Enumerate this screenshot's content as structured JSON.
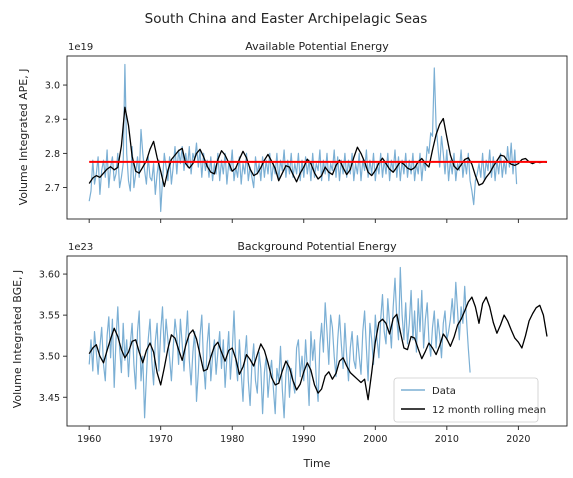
{
  "figure": {
    "suptitle": "South China and Easter Archipelagic Seas",
    "xlabel": "Time"
  },
  "colors": {
    "data": "#7bafd4",
    "rolling": "#000000",
    "mean": "#ff0000",
    "axis": "#222222"
  },
  "chart_data": [
    {
      "type": "line",
      "title": "Available Potential Energy",
      "ylabel": "Volume Integrated APE, J",
      "offset_label": "1e19",
      "xlim": [
        1956.9,
        2026.8
      ],
      "ylim": [
        2.608,
        3.085
      ],
      "yticks": [
        2.7,
        2.8,
        2.9,
        3.0
      ],
      "ytick_labels": [
        "2.7",
        "2.8",
        "2.9",
        "3.0"
      ],
      "xticks": [
        1960,
        1970,
        1980,
        1990,
        2000,
        2010,
        2020
      ],
      "xtick_labels": [],
      "mean_line": {
        "value": 2.775,
        "x": [
          1960,
          2024
        ]
      },
      "series": [
        {
          "name": "Data",
          "x_start": 1960.0,
          "x_step": 0.25,
          "values": [
            2.66,
            2.69,
            2.78,
            2.71,
            2.74,
            2.79,
            2.68,
            2.75,
            2.78,
            2.73,
            2.81,
            2.7,
            2.76,
            2.79,
            2.72,
            2.74,
            2.8,
            2.7,
            2.73,
            2.77,
            3.06,
            2.8,
            2.72,
            2.69,
            2.82,
            2.7,
            2.74,
            2.79,
            2.73,
            2.87,
            2.8,
            2.75,
            2.71,
            2.79,
            2.73,
            2.72,
            2.77,
            2.68,
            2.74,
            2.78,
            2.63,
            2.72,
            2.8,
            2.76,
            2.72,
            2.79,
            2.71,
            2.76,
            2.82,
            2.74,
            2.81,
            2.77,
            2.82,
            2.75,
            2.8,
            2.76,
            2.82,
            2.74,
            2.8,
            2.78,
            2.83,
            2.76,
            2.81,
            2.73,
            2.8,
            2.75,
            2.78,
            2.73,
            2.79,
            2.72,
            2.77,
            2.74,
            2.8,
            2.72,
            2.78,
            2.74,
            2.8,
            2.71,
            2.77,
            2.75,
            2.81,
            2.72,
            2.76,
            2.73,
            2.79,
            2.71,
            2.77,
            2.74,
            2.8,
            2.72,
            2.76,
            2.73,
            2.7,
            2.79,
            2.74,
            2.77,
            2.72,
            2.79,
            2.73,
            2.78,
            2.74,
            2.8,
            2.72,
            2.77,
            2.74,
            2.8,
            2.72,
            2.78,
            2.75,
            2.81,
            2.73,
            2.78,
            2.74,
            2.8,
            2.73,
            2.77,
            2.74,
            2.8,
            2.72,
            2.78,
            2.73,
            2.79,
            2.74,
            2.78,
            2.72,
            2.8,
            2.73,
            2.77,
            2.75,
            2.81,
            2.72,
            2.78,
            2.74,
            2.8,
            2.72,
            2.77,
            2.75,
            2.81,
            2.73,
            2.79,
            2.72,
            2.78,
            2.74,
            2.8,
            2.73,
            2.78,
            2.74,
            2.8,
            2.72,
            2.77,
            2.74,
            2.8,
            2.72,
            2.78,
            2.75,
            2.81,
            2.73,
            2.78,
            2.74,
            2.8,
            2.72,
            2.77,
            2.74,
            2.8,
            2.73,
            2.78,
            2.74,
            2.8,
            2.72,
            2.78,
            2.75,
            2.81,
            2.73,
            2.79,
            2.72,
            2.78,
            2.74,
            2.8,
            2.73,
            2.78,
            2.74,
            2.8,
            2.72,
            2.77,
            2.74,
            2.8,
            2.72,
            2.78,
            2.75,
            2.82,
            2.8,
            2.86,
            2.85,
            3.05,
            2.88,
            2.82,
            2.76,
            2.85,
            2.8,
            2.74,
            2.81,
            2.72,
            2.78,
            2.74,
            2.8,
            2.72,
            2.77,
            2.75,
            2.81,
            2.73,
            2.78,
            2.74,
            2.8,
            2.72,
            2.69,
            2.65,
            2.72,
            2.74,
            2.77,
            2.73,
            2.8,
            2.72,
            2.78,
            2.75,
            2.81,
            2.73,
            2.79,
            2.72,
            2.78,
            2.74,
            2.8,
            2.73,
            2.78,
            2.74,
            2.82,
            2.76,
            2.83,
            2.74,
            2.81,
            2.71
          ]
        },
        {
          "name": "12 month rolling mean",
          "x_start": 1960.0,
          "x_step": 0.5,
          "values": [
            2.712,
            2.728,
            2.735,
            2.73,
            2.742,
            2.754,
            2.761,
            2.752,
            2.759,
            2.822,
            2.935,
            2.882,
            2.792,
            2.748,
            2.742,
            2.76,
            2.778,
            2.812,
            2.835,
            2.788,
            2.748,
            2.703,
            2.75,
            2.782,
            2.795,
            2.808,
            2.815,
            2.77,
            2.757,
            2.77,
            2.8,
            2.812,
            2.79,
            2.762,
            2.745,
            2.74,
            2.782,
            2.808,
            2.795,
            2.773,
            2.748,
            2.757,
            2.783,
            2.806,
            2.787,
            2.754,
            2.735,
            2.741,
            2.758,
            2.78,
            2.797,
            2.777,
            2.756,
            2.72,
            2.742,
            2.764,
            2.76,
            2.738,
            2.717,
            2.742,
            2.76,
            2.783,
            2.77,
            2.743,
            2.725,
            2.735,
            2.76,
            2.745,
            2.738,
            2.765,
            2.78,
            2.758,
            2.738,
            2.753,
            2.788,
            2.818,
            2.8,
            2.775,
            2.745,
            2.735,
            2.75,
            2.772,
            2.786,
            2.77,
            2.754,
            2.745,
            2.76,
            2.776,
            2.768,
            2.757,
            2.752,
            2.758,
            2.775,
            2.785,
            2.77,
            2.76,
            2.81,
            2.855,
            2.885,
            2.902,
            2.848,
            2.795,
            2.763,
            2.752,
            2.766,
            2.782,
            2.787,
            2.768,
            2.735,
            2.707,
            2.712,
            2.73,
            2.743,
            2.762,
            2.778,
            2.795,
            2.792,
            2.777,
            2.768,
            2.765,
            2.77,
            2.782,
            2.785,
            2.775,
            2.77,
            2.775,
            2.773,
            2.775,
            2.774
          ]
        }
      ]
    },
    {
      "type": "line",
      "title": "Background Potential Energy",
      "ylabel": "Volume Integrated BGE, J",
      "offset_label": "1e23",
      "xlim": [
        1956.9,
        2026.8
      ],
      "ylim": [
        3.415,
        3.622
      ],
      "yticks": [
        3.45,
        3.5,
        3.55,
        3.6
      ],
      "ytick_labels": [
        "3.45",
        "3.50",
        "3.55",
        "3.60"
      ],
      "xticks": [
        1960,
        1970,
        1980,
        1990,
        2000,
        2010,
        2020
      ],
      "xtick_labels": [
        "1960",
        "1970",
        "1980",
        "1990",
        "2000",
        "2010",
        "2020"
      ],
      "legend": {
        "loc": "lower right",
        "entries": [
          "Data",
          "12 month rolling mean"
        ]
      },
      "series": [
        {
          "name": "Data",
          "x_start": 1960.0,
          "x_step": 0.25,
          "values": [
            3.49,
            3.52,
            3.482,
            3.53,
            3.505,
            3.478,
            3.512,
            3.535,
            3.49,
            3.47,
            3.525,
            3.548,
            3.498,
            3.545,
            3.462,
            3.52,
            3.56,
            3.51,
            3.48,
            3.54,
            3.495,
            3.52,
            3.475,
            3.515,
            3.54,
            3.49,
            3.46,
            3.53,
            3.555,
            3.47,
            3.5,
            3.425,
            3.475,
            3.52,
            3.545,
            3.495,
            3.465,
            3.518,
            3.54,
            3.482,
            3.53,
            3.56,
            3.505,
            3.545,
            3.52,
            3.498,
            3.47,
            3.51,
            3.545,
            3.525,
            3.49,
            3.545,
            3.515,
            3.482,
            3.52,
            3.555,
            3.495,
            3.465,
            3.505,
            3.53,
            3.445,
            3.48,
            3.525,
            3.55,
            3.49,
            3.46,
            3.515,
            3.54,
            3.47,
            3.5,
            3.52,
            3.478,
            3.505,
            3.53,
            3.485,
            3.52,
            3.462,
            3.498,
            3.53,
            3.472,
            3.505,
            3.555,
            3.495,
            3.47,
            3.52,
            3.48,
            3.445,
            3.5,
            3.525,
            3.47,
            3.44,
            3.49,
            3.515,
            3.47,
            3.455,
            3.505,
            3.485,
            3.43,
            3.48,
            3.5,
            3.45,
            3.478,
            3.495,
            3.46,
            3.43,
            3.485,
            3.47,
            3.512,
            3.46,
            3.425,
            3.478,
            3.495,
            3.45,
            3.485,
            3.47,
            3.455,
            3.51,
            3.52,
            3.475,
            3.5,
            3.47,
            3.52,
            3.485,
            3.44,
            3.53,
            3.495,
            3.52,
            3.47,
            3.445,
            3.515,
            3.54,
            3.505,
            3.565,
            3.53,
            3.49,
            3.55,
            3.535,
            3.5,
            3.475,
            3.52,
            3.55,
            3.515,
            3.485,
            3.54,
            3.5,
            3.47,
            3.51,
            3.53,
            3.495,
            3.485,
            3.525,
            3.5,
            3.478,
            3.53,
            3.555,
            3.51,
            3.47,
            3.54,
            3.52,
            3.49,
            3.55,
            3.52,
            3.498,
            3.545,
            3.575,
            3.53,
            3.515,
            3.57,
            3.54,
            3.51,
            3.56,
            3.595,
            3.545,
            3.52,
            3.608,
            3.55,
            3.52,
            3.565,
            3.515,
            3.54,
            3.58,
            3.52,
            3.555,
            3.505,
            3.57,
            3.53,
            3.58,
            3.51,
            3.545,
            3.565,
            3.52,
            3.5,
            3.535,
            3.555,
            3.51,
            3.545,
            3.525,
            3.498,
            3.54,
            3.555,
            3.52,
            3.53,
            3.545,
            3.57,
            3.54,
            3.59,
            3.555,
            3.52,
            3.56,
            3.54,
            3.585,
            3.545,
            3.51,
            3.48
          ]
        },
        {
          "name": "12 month rolling mean",
          "x_start": 1960.0,
          "x_step": 0.5,
          "values": [
            3.503,
            3.51,
            3.514,
            3.5,
            3.492,
            3.507,
            3.521,
            3.534,
            3.524,
            3.508,
            3.498,
            3.505,
            3.518,
            3.52,
            3.505,
            3.492,
            3.507,
            3.516,
            3.505,
            3.48,
            3.465,
            3.486,
            3.509,
            3.526,
            3.522,
            3.508,
            3.495,
            3.513,
            3.527,
            3.532,
            3.521,
            3.502,
            3.482,
            3.484,
            3.499,
            3.512,
            3.517,
            3.505,
            3.494,
            3.507,
            3.51,
            3.497,
            3.478,
            3.487,
            3.502,
            3.496,
            3.488,
            3.502,
            3.515,
            3.507,
            3.492,
            3.474,
            3.465,
            3.467,
            3.482,
            3.494,
            3.486,
            3.47,
            3.459,
            3.466,
            3.481,
            3.492,
            3.483,
            3.465,
            3.455,
            3.46,
            3.476,
            3.481,
            3.472,
            3.479,
            3.494,
            3.498,
            3.488,
            3.48,
            3.476,
            3.472,
            3.468,
            3.472,
            3.447,
            3.48,
            3.517,
            3.541,
            3.545,
            3.54,
            3.527,
            3.546,
            3.551,
            3.53,
            3.51,
            3.508,
            3.524,
            3.522,
            3.509,
            3.497,
            3.506,
            3.516,
            3.51,
            3.502,
            3.513,
            3.527,
            3.521,
            3.512,
            3.523,
            3.538,
            3.545,
            3.555,
            3.566,
            3.572,
            3.56,
            3.54,
            3.564,
            3.572,
            3.56,
            3.541,
            3.528,
            3.538,
            3.55,
            3.543,
            3.532,
            3.522,
            3.517,
            3.51,
            3.525,
            3.543,
            3.552,
            3.559,
            3.562,
            3.55,
            3.524
          ]
        }
      ]
    }
  ]
}
